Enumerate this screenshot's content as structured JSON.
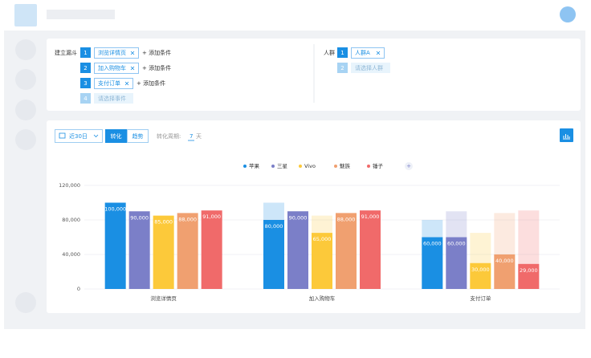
{
  "ui": {
    "funnel_label": "建立漏斗",
    "steps": [
      {
        "number": "1",
        "event": "浏览详情页",
        "action": "+ 添加条件"
      },
      {
        "number": "2",
        "event": "加入购物车",
        "action": "+ 添加条件"
      },
      {
        "number": "3",
        "event": "支付订单",
        "action": "+ 添加条件"
      },
      {
        "number": "4",
        "placeholder": "请选择事件"
      }
    ],
    "audience_label": "人群",
    "audiences": [
      {
        "number": "1",
        "name": "人群A"
      },
      {
        "number": "2",
        "placeholder": "请选择人群"
      }
    ],
    "date_range": "近30日",
    "tabs": [
      "转化",
      "趋势"
    ],
    "period_label": "转化周期:",
    "period_value": "7",
    "period_unit": "天",
    "legend_add": "+"
  },
  "chart_data": {
    "type": "bar",
    "categories": [
      "浏览详情页",
      "加入购物车",
      "支付订单"
    ],
    "series": [
      {
        "name": "苹果",
        "color": "#1a8fe3",
        "values": [
          100000,
          80000,
          60000
        ],
        "value_labels": [
          "100,000",
          "80,000",
          "60,000"
        ]
      },
      {
        "name": "三星",
        "color": "#7b7fc8",
        "values": [
          90000,
          90000,
          60000
        ],
        "value_labels": [
          "90,000",
          "90,000",
          "60,000"
        ]
      },
      {
        "name": "Vivo",
        "color": "#fcc93a",
        "values": [
          85000,
          65000,
          30000
        ],
        "value_labels": [
          "85,000",
          "65,000",
          "30,000"
        ]
      },
      {
        "name": "魅族",
        "color": "#f0a070",
        "values": [
          88000,
          88000,
          40000
        ],
        "value_labels": [
          "88,000",
          "88,000",
          "40,000"
        ]
      },
      {
        "name": "锤子",
        "color": "#f06a6a",
        "values": [
          91000,
          91000,
          29000
        ],
        "value_labels": [
          "91,000",
          "91,000",
          "29,000"
        ]
      }
    ],
    "ylim": [
      0,
      120000
    ],
    "yticks": [
      0,
      {
        "value": 40000,
        "label": "40,000"
      },
      {
        "value": 80000,
        "label": "80,000"
      },
      {
        "value": 120000,
        "label": "120,000"
      }
    ],
    "grid": true,
    "legend": "top"
  }
}
